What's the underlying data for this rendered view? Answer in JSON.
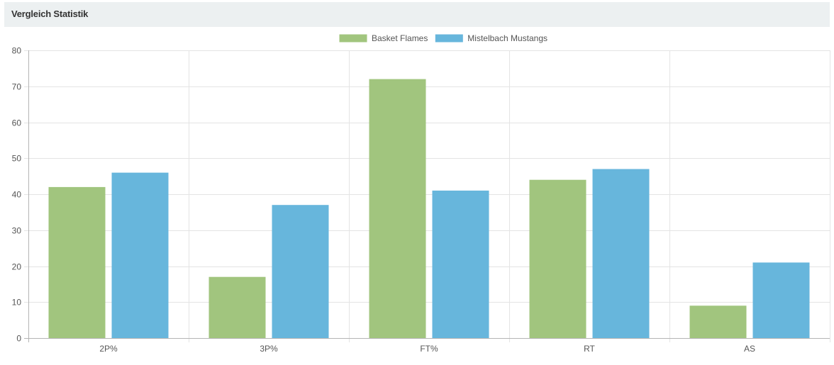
{
  "panel": {
    "title": "Vergleich Statistik"
  },
  "colors": {
    "header_bg": "#ecf0f1",
    "grid": "#e4e4e4",
    "axis": "#b5b5b5",
    "tick_text": "#555555"
  },
  "chart_data": {
    "type": "bar",
    "categories": [
      "2P%",
      "3P%",
      "FT%",
      "RT",
      "AS"
    ],
    "series": [
      {
        "name": "Basket Flames",
        "color": "#a1c57e",
        "values": [
          42,
          17,
          72,
          44,
          9
        ]
      },
      {
        "name": "Mistelbach Mustangs",
        "color": "#67b6dc",
        "values": [
          46,
          37,
          41,
          47,
          21
        ]
      }
    ],
    "ylim": [
      0,
      80
    ],
    "yticks": [
      0,
      10,
      20,
      30,
      40,
      50,
      60,
      70,
      80
    ],
    "grid": true,
    "legend": "top-center",
    "title": "",
    "xlabel": "",
    "ylabel": ""
  }
}
